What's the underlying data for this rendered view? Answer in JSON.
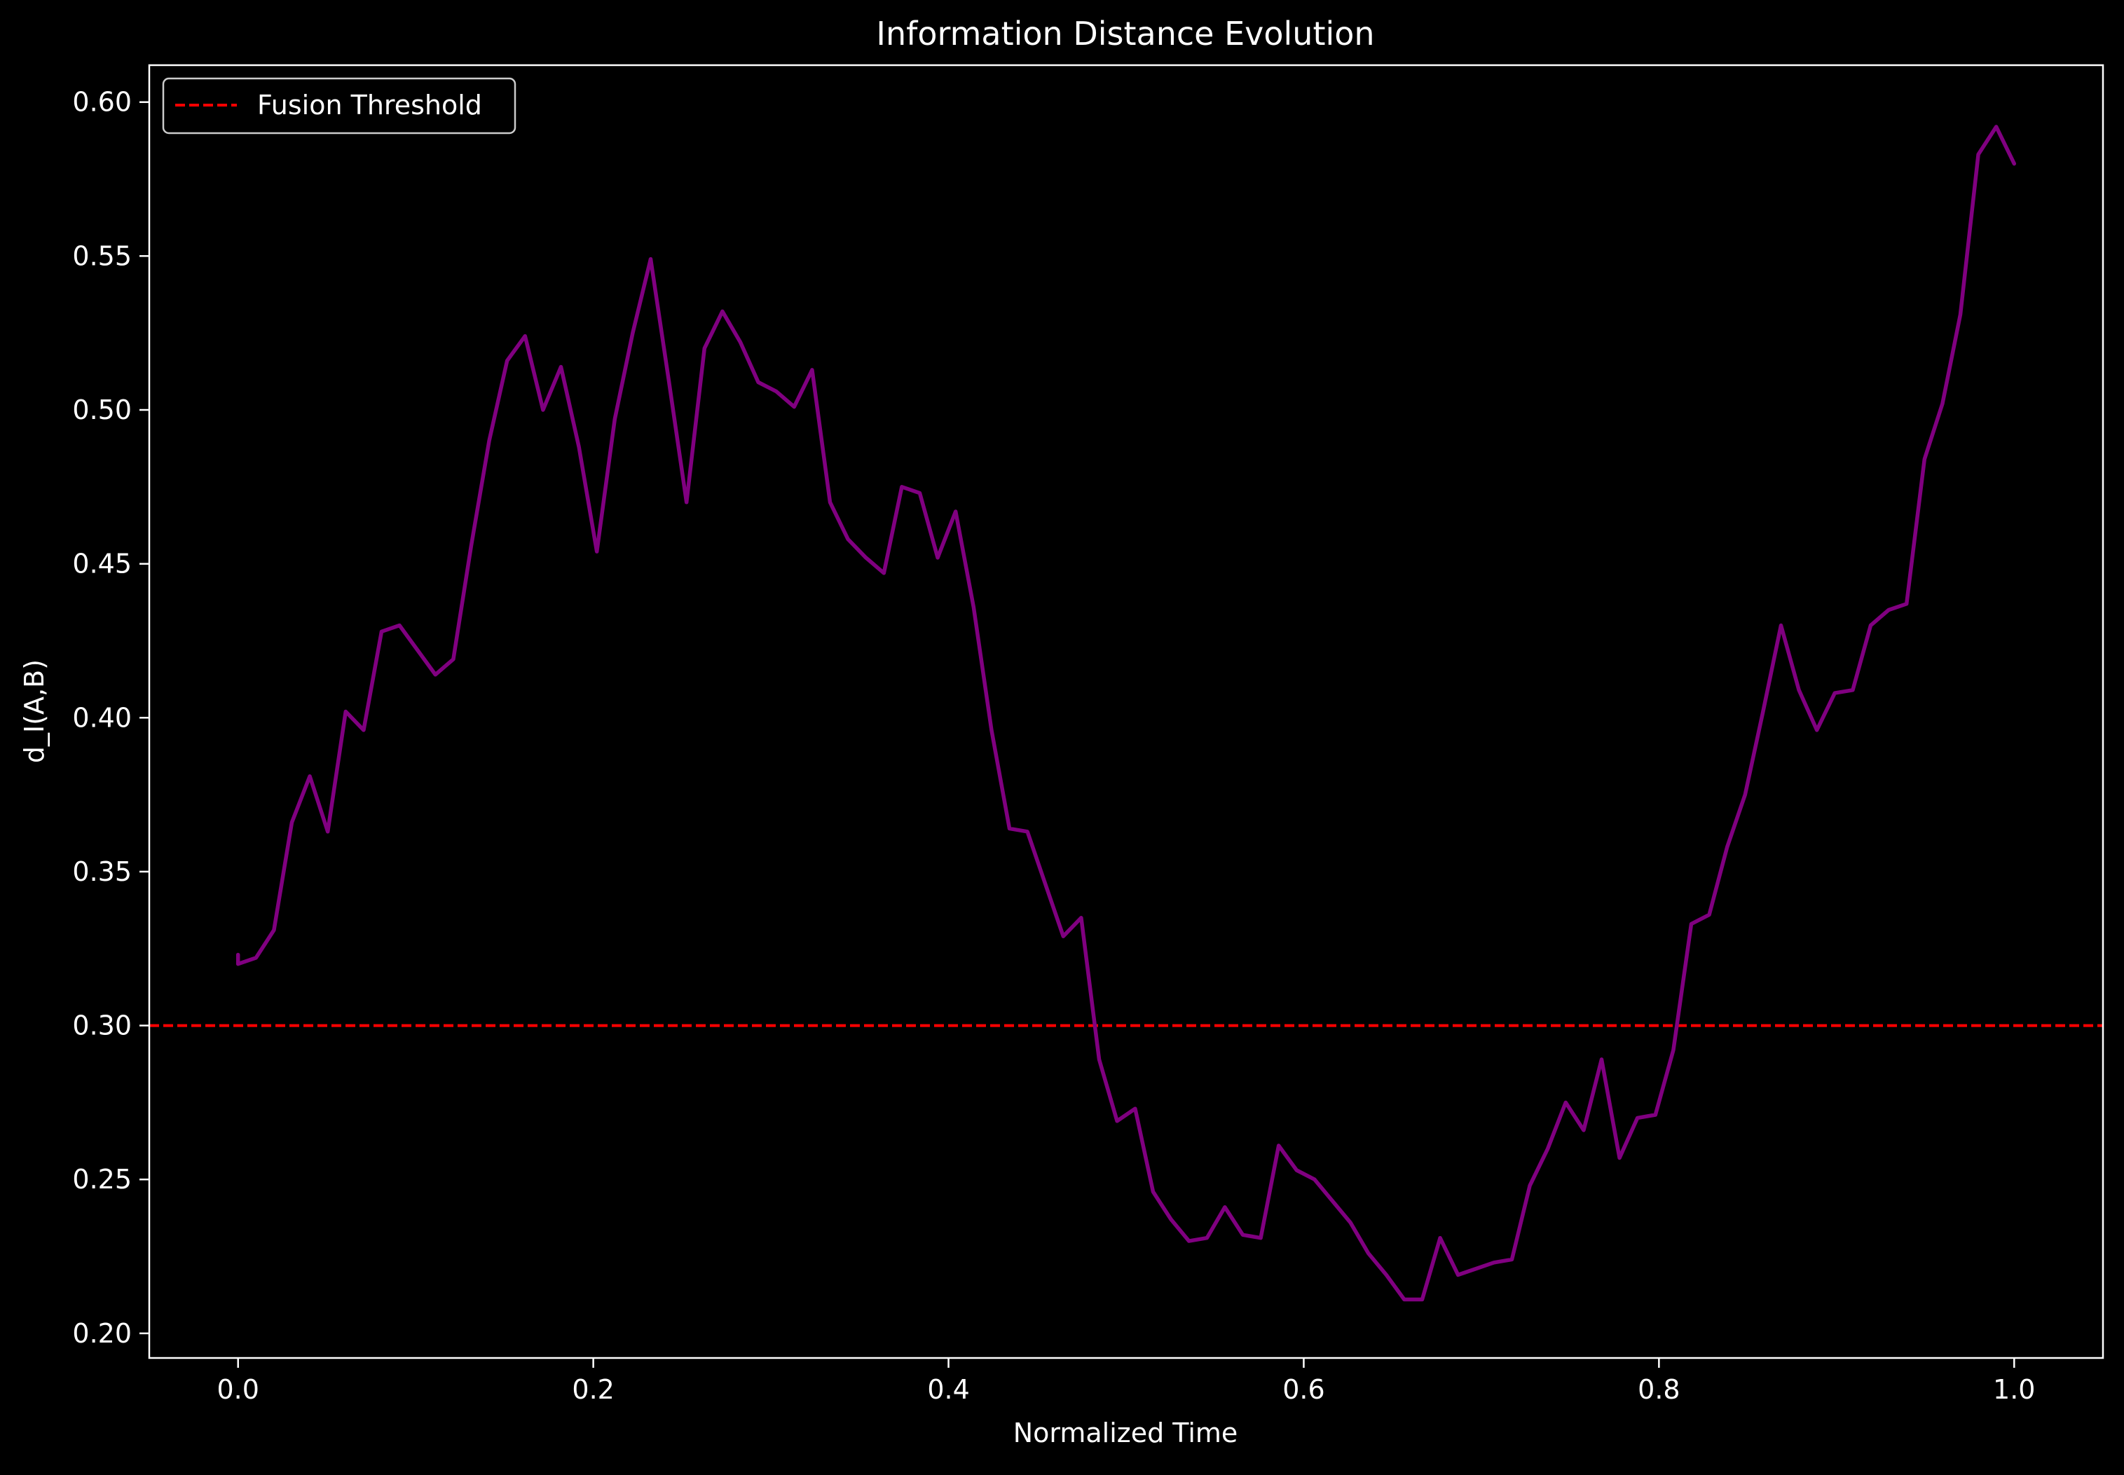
{
  "chart_data": {
    "type": "line",
    "title": "Information Distance Evolution",
    "xlabel": "Normalized Time",
    "ylabel": "d_I(A,B)",
    "xlim": [
      -0.05,
      1.05
    ],
    "ylim": [
      0.192,
      0.612
    ],
    "x_ticks": [
      0.0,
      0.2,
      0.4,
      0.6,
      0.8,
      1.0
    ],
    "x_tick_labels": [
      "0.0",
      "0.2",
      "0.4",
      "0.6",
      "0.8",
      "1.0"
    ],
    "y_ticks": [
      0.2,
      0.25,
      0.3,
      0.35,
      0.4,
      0.45,
      0.5,
      0.55,
      0.6
    ],
    "y_tick_labels": [
      "0.20",
      "0.25",
      "0.30",
      "0.35",
      "0.40",
      "0.45",
      "0.50",
      "0.55",
      "0.60"
    ],
    "grid": false,
    "background": "#000000",
    "legend": {
      "placement": "top-left",
      "entries": [
        {
          "label": "Fusion Threshold",
          "color": "#ff0000",
          "style": "dashed"
        }
      ]
    },
    "threshold": {
      "name": "Fusion Threshold",
      "y": 0.3,
      "color": "#ff0000"
    },
    "series": [
      {
        "color": "#800080",
        "x": [
          0.0,
          0.0,
          0.0101,
          0.0202,
          0.0303,
          0.0404,
          0.0505,
          0.0606,
          0.0707,
          0.0808,
          0.0909,
          0.101,
          0.1111,
          0.1212,
          0.1313,
          0.1414,
          0.1515,
          0.1616,
          0.1717,
          0.1818,
          0.1919,
          0.202,
          0.2121,
          0.2222,
          0.2323,
          0.2424,
          0.2525,
          0.2626,
          0.2727,
          0.2828,
          0.2929,
          0.303,
          0.3131,
          0.3232,
          0.3333,
          0.3434,
          0.3535,
          0.3636,
          0.3737,
          0.3838,
          0.3939,
          0.404,
          0.4141,
          0.4242,
          0.4343,
          0.4444,
          0.4545,
          0.4646,
          0.4747,
          0.4848,
          0.4949,
          0.5051,
          0.5152,
          0.5253,
          0.5354,
          0.5455,
          0.5556,
          0.5657,
          0.5758,
          0.5859,
          0.596,
          0.6061,
          0.6162,
          0.6263,
          0.6364,
          0.6465,
          0.6566,
          0.6667,
          0.6768,
          0.6869,
          0.697,
          0.7071,
          0.7172,
          0.7273,
          0.7374,
          0.7475,
          0.7576,
          0.7677,
          0.7778,
          0.7879,
          0.798,
          0.8081,
          0.8182,
          0.8283,
          0.8384,
          0.8485,
          0.8586,
          0.8687,
          0.8788,
          0.8889,
          0.899,
          0.9091,
          0.9192,
          0.9293,
          0.9394,
          0.9495,
          0.9596,
          0.9697,
          0.9798,
          0.9899,
          1.0
        ],
        "y": [
          0.323,
          0.32,
          0.322,
          0.331,
          0.366,
          0.381,
          0.363,
          0.402,
          0.396,
          0.428,
          0.43,
          0.422,
          0.414,
          0.419,
          0.456,
          0.49,
          0.516,
          0.524,
          0.5,
          0.514,
          0.488,
          0.454,
          0.497,
          0.525,
          0.549,
          0.51,
          0.47,
          0.52,
          0.532,
          0.522,
          0.509,
          0.506,
          0.501,
          0.513,
          0.47,
          0.458,
          0.452,
          0.447,
          0.475,
          0.473,
          0.452,
          0.467,
          0.436,
          0.396,
          0.364,
          0.363,
          0.346,
          0.329,
          0.335,
          0.289,
          0.269,
          0.273,
          0.246,
          0.237,
          0.23,
          0.231,
          0.241,
          0.232,
          0.231,
          0.261,
          0.253,
          0.25,
          0.243,
          0.236,
          0.226,
          0.219,
          0.211,
          0.211,
          0.231,
          0.219,
          0.221,
          0.223,
          0.224,
          0.248,
          0.26,
          0.275,
          0.266,
          0.289,
          0.257,
          0.27,
          0.271,
          0.292,
          0.333,
          0.336,
          0.358,
          0.375,
          0.402,
          0.43,
          0.409,
          0.396,
          0.408,
          0.409,
          0.43,
          0.435,
          0.437,
          0.484,
          0.502,
          0.531,
          0.583,
          0.592,
          0.58
        ]
      }
    ]
  }
}
